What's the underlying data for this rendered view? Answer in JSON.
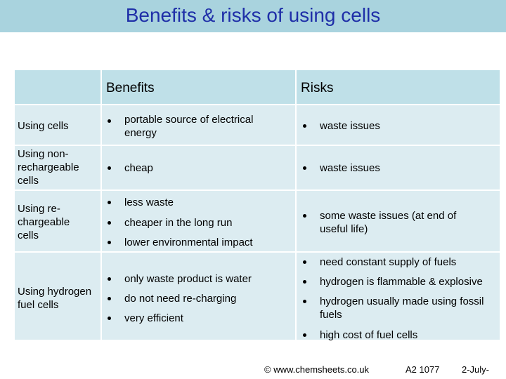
{
  "title": "Benefits & risks of using cells",
  "headers": {
    "benefits": "Benefits",
    "risks": "Risks"
  },
  "rows": [
    {
      "label": "Using cells",
      "benefits": [
        "portable source of electrical energy"
      ],
      "risks": [
        "waste issues"
      ]
    },
    {
      "label": "Using non-rechargeable cells",
      "benefits": [
        "cheap"
      ],
      "risks": [
        "waste issues"
      ]
    },
    {
      "label": "Using re-chargeable cells",
      "benefits": [
        "less waste",
        "cheaper in the long run",
        "lower environmental impact"
      ],
      "risks": [
        "some waste issues (at end of useful life)"
      ]
    },
    {
      "label": "Using hydrogen fuel cells",
      "benefits": [
        "only waste product is water",
        "do not need re-charging",
        "very efficient"
      ],
      "risks": [
        "need constant supply of fuels",
        "hydrogen is flammable & explosive",
        "hydrogen usually made using fossil fuels",
        "high cost of fuel cells"
      ]
    }
  ],
  "footer": {
    "copyright": "© www.chemsheets.co.uk",
    "code": "A2 1077",
    "date": "2-July-"
  }
}
